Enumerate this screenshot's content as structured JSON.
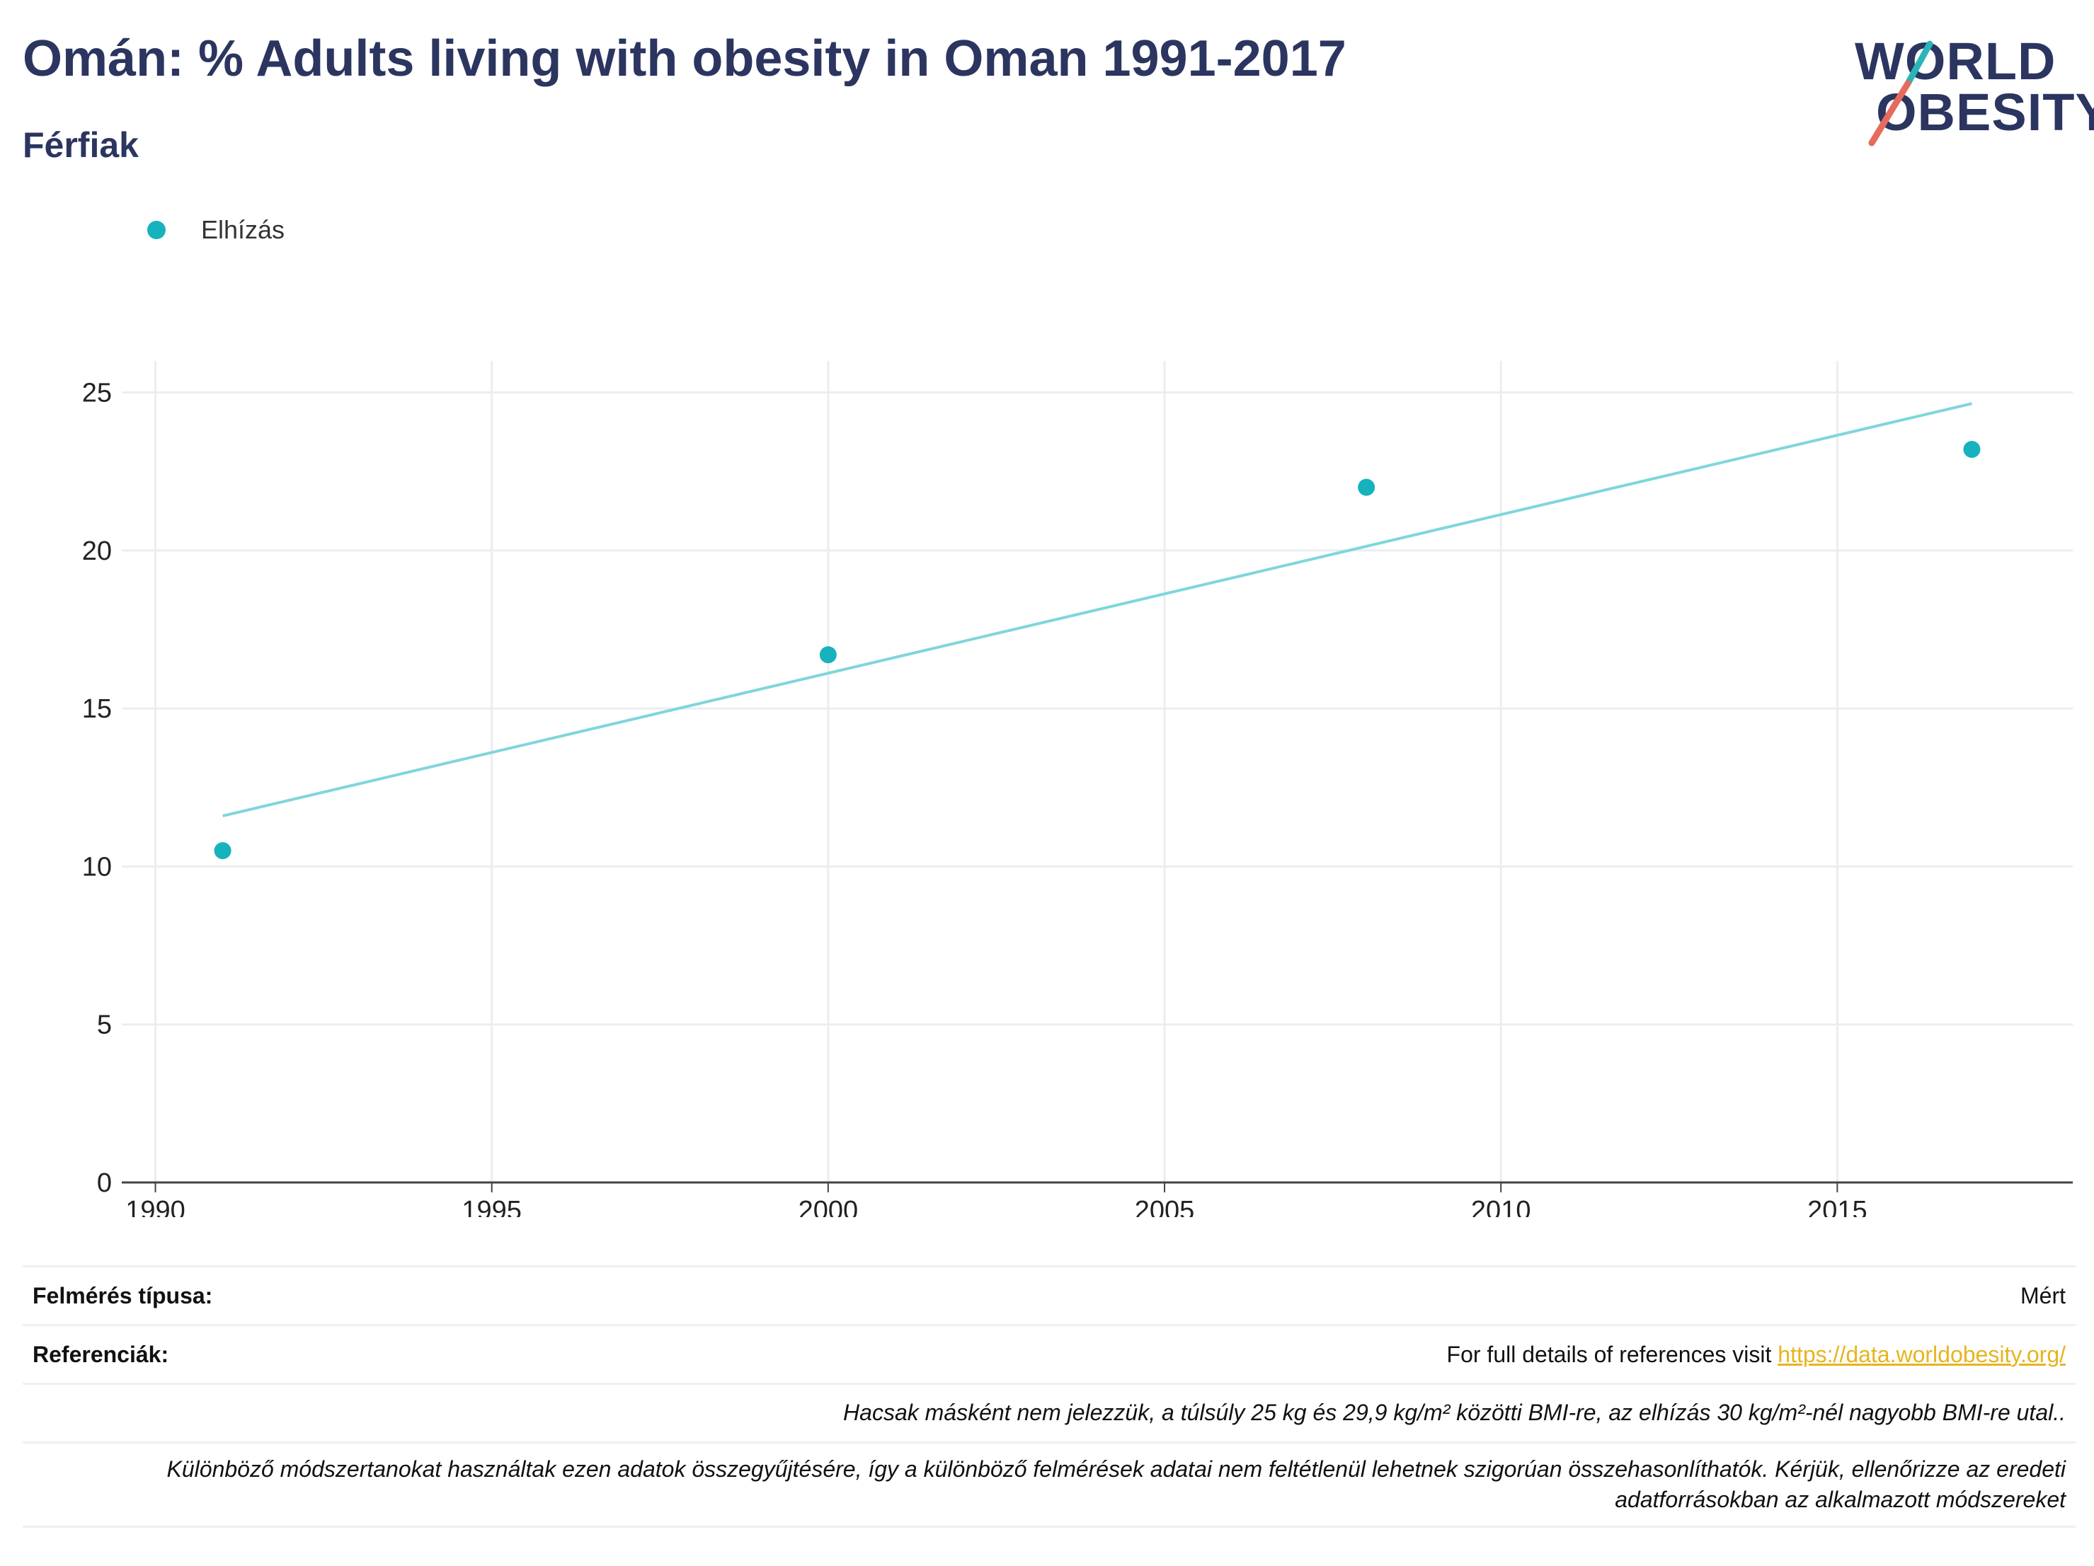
{
  "header": {
    "title": "Omán: % Adults living with obesity in Oman 1991-2017",
    "subtitle": "Férfiak"
  },
  "logo": {
    "line1": "WORLD",
    "line2": "OBESITY",
    "colors": {
      "text": "#2b3560",
      "teal": "#2bb5b8",
      "coral": "#e56b5d"
    }
  },
  "legend": {
    "items": [
      {
        "label": "Elhízás",
        "color": "#17b2bd"
      }
    ]
  },
  "chart_data": {
    "type": "scatter",
    "title": "Omán: % Adults living with obesity in Oman 1991-2017",
    "subtitle": "Férfiak",
    "xlabel": "",
    "ylabel": "",
    "xlim": [
      1989.5,
      2018.5
    ],
    "ylim": [
      0,
      26
    ],
    "x_ticks": [
      1990,
      1995,
      2000,
      2005,
      2010,
      2015
    ],
    "y_ticks": [
      0,
      5,
      10,
      15,
      20,
      25
    ],
    "grid": true,
    "legend_position": "top-left",
    "series": [
      {
        "name": "Elhízás",
        "color": "#17b2bd",
        "points": [
          {
            "x": 1991,
            "y": 10.5
          },
          {
            "x": 2000,
            "y": 16.7
          },
          {
            "x": 2008,
            "y": 22.0
          },
          {
            "x": 2017,
            "y": 23.2
          }
        ]
      }
    ],
    "trendline": {
      "color": "#7fd6db",
      "points": [
        {
          "x": 1991,
          "y": 11.6
        },
        {
          "x": 2017,
          "y": 24.65
        }
      ]
    }
  },
  "footer": {
    "survey_type_label": "Felmérés típusa:",
    "survey_type_value": "Mért",
    "references_label": "Referenciák:",
    "references_text": "For full details of references visit ",
    "references_link": "https://data.worldobesity.org/",
    "note1": "Hacsak másként nem jelezzük, a túlsúly 25 kg és 29,9 kg/m² közötti BMI-re, az elhízás 30 kg/m²-nél nagyobb BMI-re utal..",
    "note2": "Különböző módszertanokat használtak ezen adatok összegyűjtésére, így a különböző felmérések adatai nem feltétlenül lehetnek szigorúan összehasonlíthatók. Kérjük, ellenőrizze az eredeti adatforrásokban az alkalmazott módszereket"
  }
}
